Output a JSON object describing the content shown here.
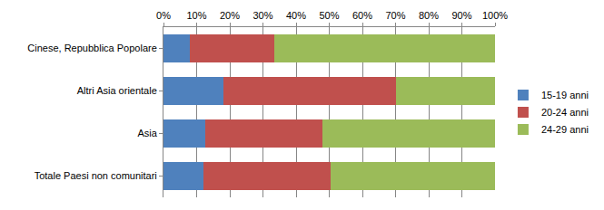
{
  "chart_data": {
    "type": "bar",
    "orientation": "horizontal",
    "stacked": true,
    "categories": [
      "Cinese, Repubblica Popolare",
      "Altri Asia orientale",
      "Asia",
      "Totale Paesi non comunitari"
    ],
    "series": [
      {
        "name": "15-19 anni",
        "color": "#4f81bd",
        "values": [
          8,
          18,
          12.5,
          12
        ]
      },
      {
        "name": "20-24 anni",
        "color": "#c0504d",
        "values": [
          25.5,
          52,
          35.5,
          38.5
        ]
      },
      {
        "name": "24-29 anni",
        "color": "#9bbb59",
        "values": [
          66.5,
          30,
          52,
          49.5
        ]
      }
    ],
    "xlim": [
      0,
      100
    ],
    "xticks": [
      {
        "value": 0,
        "label": "0%"
      },
      {
        "value": 10,
        "label": "10%"
      },
      {
        "value": 20,
        "label": "20%"
      },
      {
        "value": 30,
        "label": "30%"
      },
      {
        "value": 40,
        "label": "40%"
      },
      {
        "value": 50,
        "label": "50%"
      },
      {
        "value": 60,
        "label": "60%"
      },
      {
        "value": 70,
        "label": "70%"
      },
      {
        "value": 80,
        "label": "80%"
      },
      {
        "value": 90,
        "label": "90%"
      },
      {
        "value": 100,
        "label": "100%"
      }
    ],
    "grid": true,
    "legend": "right"
  }
}
